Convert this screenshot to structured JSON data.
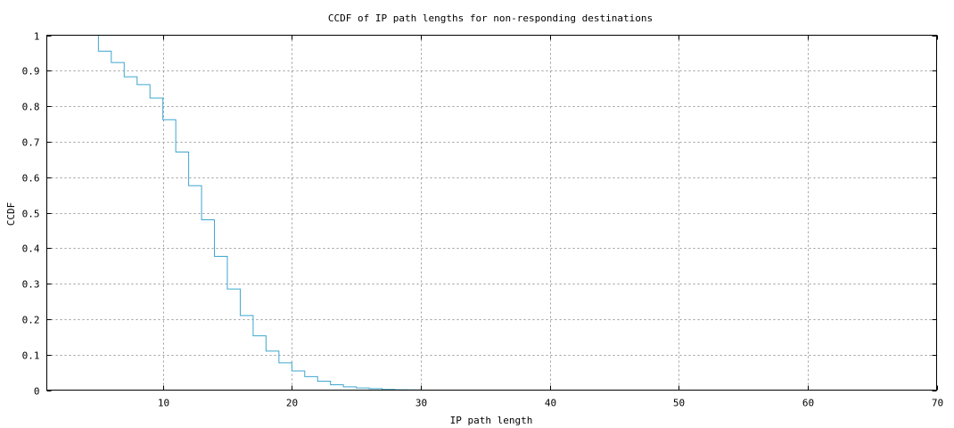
{
  "chart_data": {
    "type": "line",
    "title": "CCDF of IP path lengths for non-responding destinations",
    "xlabel": "IP path length",
    "ylabel": "CCDF",
    "xlim": [
      1,
      70
    ],
    "ylim": [
      0,
      1
    ],
    "x_ticks": [
      10,
      20,
      30,
      40,
      50,
      60,
      70
    ],
    "y_ticks": [
      0,
      0.1,
      0.2,
      0.3,
      0.4,
      0.5,
      0.6,
      0.7,
      0.8,
      0.9,
      1
    ],
    "x_tick_labels": [
      "10",
      "20",
      "30",
      "40",
      "50",
      "60",
      "70"
    ],
    "y_tick_labels": [
      "0",
      "0.1",
      "0.2",
      "0.3",
      "0.4",
      "0.5",
      "0.6",
      "0.7",
      "0.8",
      "0.9",
      "1"
    ],
    "grid": true,
    "legend": "none",
    "colors": {
      "series": "#3ea6d0",
      "grid": "#9a9a9a",
      "frame": "#000000"
    },
    "series": [
      {
        "step": "post",
        "x": [
          5,
          6,
          7,
          8,
          9,
          10,
          11,
          12,
          13,
          14,
          15,
          16,
          17,
          18,
          19,
          20,
          21,
          22,
          23,
          24,
          25,
          26,
          27,
          28,
          29,
          30
        ],
        "y": [
          0.955,
          0.923,
          0.883,
          0.861,
          0.823,
          0.762,
          0.671,
          0.576,
          0.48,
          0.377,
          0.285,
          0.21,
          0.153,
          0.11,
          0.077,
          0.054,
          0.038,
          0.025,
          0.015,
          0.009,
          0.006,
          0.004,
          0.002,
          0.001,
          0.0005,
          0.0002
        ]
      }
    ]
  }
}
